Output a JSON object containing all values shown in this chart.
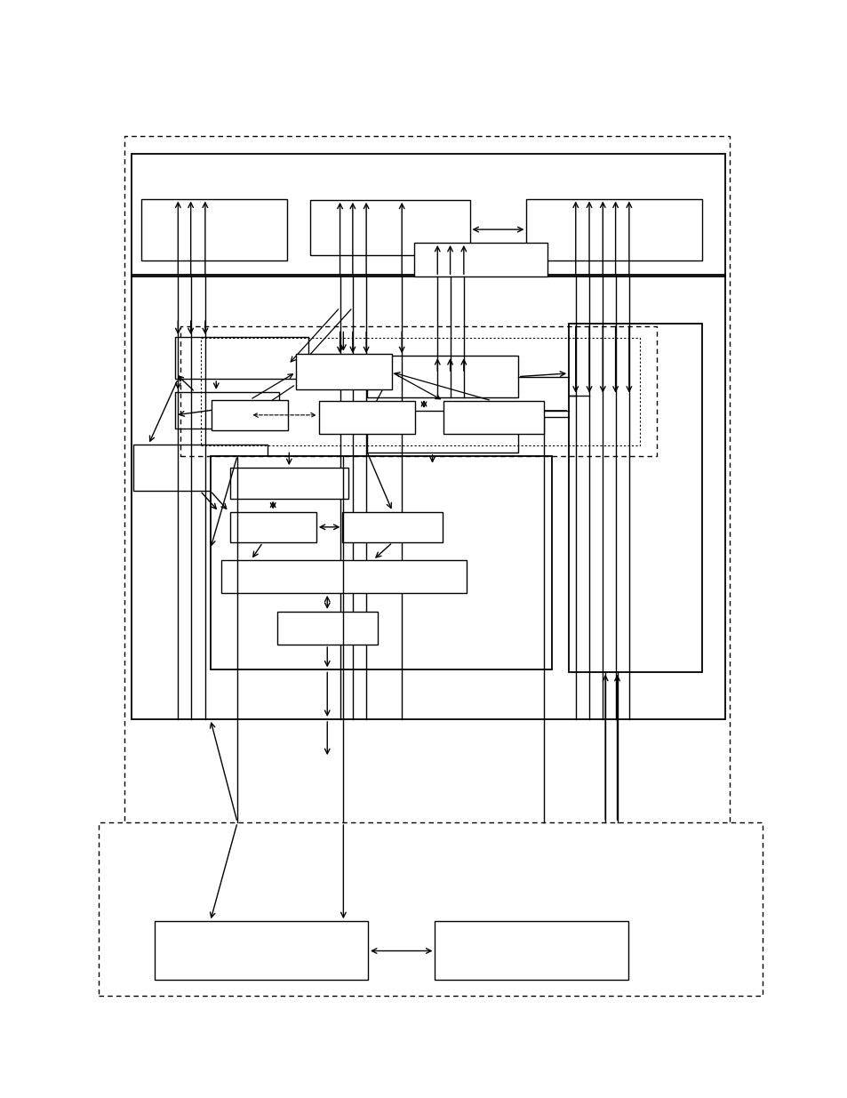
{
  "bg": "#ffffff",
  "lc": "#000000",
  "fig_w": 9.54,
  "fig_h": 12.35,
  "dpi": 100
}
